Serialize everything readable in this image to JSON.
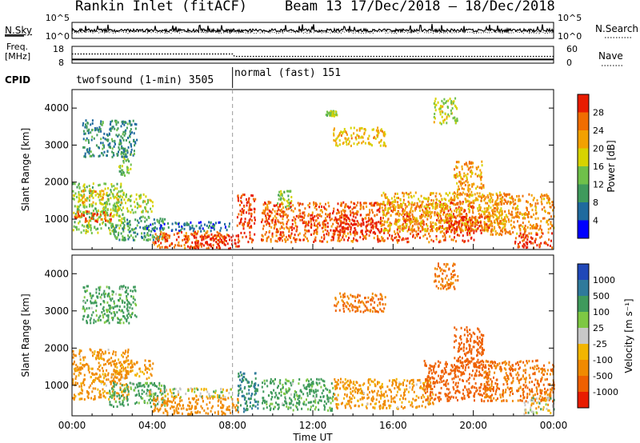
{
  "chart_data": [
    {
      "type": "line",
      "panel": "summary-top",
      "left_label": "N.Sky",
      "right_label": "N.Search",
      "left_ticks": [
        "10^5",
        "10^0"
      ],
      "right_ticks": [
        "10^5",
        "10^0"
      ],
      "legend": [
        {
          "name": "N.Sky",
          "style": "solid"
        },
        {
          "name": "N.Search",
          "style": "dotted"
        }
      ]
    },
    {
      "type": "line",
      "panel": "summary-freq",
      "left_label": [
        "Freq.",
        "[MHz]"
      ],
      "right_label": "Nave",
      "left_ticks": [
        18,
        8
      ],
      "right_ticks": [
        60,
        0
      ],
      "ylim": [
        8,
        18
      ],
      "right_ylim": [
        0,
        60
      ],
      "series": [
        {
          "name": "Freq.",
          "style": "solid",
          "x": [
            0,
            24
          ],
          "values": [
            10.2,
            10.2
          ]
        },
        {
          "name": "Nave",
          "style": "dotted",
          "x": [
            0,
            8,
            8.1,
            24
          ],
          "values": [
            33,
            33,
            24,
            24
          ]
        }
      ]
    },
    {
      "type": "table",
      "panel": "cpid",
      "label": "CPID",
      "segments": [
        {
          "start_hour": 0,
          "end_hour": 8,
          "text": "twofsound (1-min) 3505"
        },
        {
          "start_hour": 8,
          "end_hour": 24,
          "text": "normal (fast) 151"
        }
      ]
    },
    {
      "type": "heatmap",
      "panel": "power",
      "ylabel": "Slant Range [km]",
      "xlim": [
        0,
        24
      ],
      "ylim": [
        180,
        4500
      ],
      "yticks": [
        1000,
        2000,
        3000,
        4000
      ],
      "colorbar": {
        "label": "Power [dB]",
        "ticks": [
          4,
          8,
          12,
          16,
          20,
          24,
          28
        ],
        "range": [
          0,
          30
        ],
        "colors": [
          "#0000ff",
          "#1f6a9e",
          "#3f9a5c",
          "#6fc04a",
          "#d7d300",
          "#f3a100",
          "#f06d00",
          "#e81c00"
        ]
      },
      "echo_regions": [
        {
          "t0": 0.0,
          "t1": 2.6,
          "r0": 650,
          "r1": 2000,
          "value": 14
        },
        {
          "t0": 0.1,
          "t1": 2.0,
          "r0": 950,
          "r1": 1250,
          "value": 26
        },
        {
          "t0": 0.3,
          "t1": 1.6,
          "r0": 1450,
          "r1": 1800,
          "value": 20
        },
        {
          "t0": 2.3,
          "t1": 2.9,
          "r0": 2200,
          "r1": 2900,
          "value": 13
        },
        {
          "t0": 2.0,
          "t1": 4.0,
          "r0": 1200,
          "r1": 1700,
          "value": 16
        },
        {
          "t0": 0.5,
          "t1": 3.2,
          "r0": 2700,
          "r1": 3700,
          "value": 8
        },
        {
          "t0": 1.8,
          "t1": 4.6,
          "r0": 450,
          "r1": 1100,
          "value": 10
        },
        {
          "t0": 3.7,
          "t1": 7.9,
          "r0": 700,
          "r1": 950,
          "value": 6
        },
        {
          "t0": 4.0,
          "t1": 7.7,
          "r0": 250,
          "r1": 700,
          "value": 24
        },
        {
          "t0": 5.5,
          "t1": 8.3,
          "r0": 230,
          "r1": 600,
          "value": 29
        },
        {
          "t0": 8.2,
          "t1": 9.1,
          "r0": 400,
          "r1": 1700,
          "value": 27
        },
        {
          "t0": 10.2,
          "t1": 10.9,
          "r0": 1300,
          "r1": 1800,
          "value": 14
        },
        {
          "t0": 9.4,
          "t1": 20.0,
          "r0": 400,
          "r1": 1500,
          "value": 25
        },
        {
          "t0": 13.0,
          "t1": 15.4,
          "r0": 650,
          "r1": 1150,
          "value": 29
        },
        {
          "t0": 15.4,
          "t1": 21.5,
          "r0": 700,
          "r1": 1750,
          "value": 20
        },
        {
          "t0": 18.6,
          "t1": 20.8,
          "r0": 650,
          "r1": 1100,
          "value": 28
        },
        {
          "t0": 19.0,
          "t1": 20.5,
          "r0": 1500,
          "r1": 2600,
          "value": 21
        },
        {
          "t0": 20.5,
          "t1": 24.0,
          "r0": 600,
          "r1": 1700,
          "value": 22
        },
        {
          "t0": 22.0,
          "t1": 24.0,
          "r0": 250,
          "r1": 650,
          "value": 28
        },
        {
          "t0": 13.0,
          "t1": 15.6,
          "r0": 3000,
          "r1": 3500,
          "value": 19
        },
        {
          "t0": 12.6,
          "t1": 13.2,
          "r0": 3800,
          "r1": 3950,
          "value": 15
        },
        {
          "t0": 18.0,
          "t1": 19.2,
          "r0": 3600,
          "r1": 4300,
          "value": 16
        }
      ]
    },
    {
      "type": "heatmap",
      "panel": "velocity",
      "ylabel": "Slant Range [km]",
      "xlabel": "Time UT",
      "xlim": [
        0,
        24
      ],
      "ylim": [
        180,
        4500
      ],
      "yticks": [
        1000,
        2000,
        3000,
        4000
      ],
      "xticks": [
        "00:00",
        "04:00",
        "08:00",
        "12:00",
        "16:00",
        "20:00",
        "00:00"
      ],
      "colorbar": {
        "label": "Velocity [m s⁻¹]",
        "ticks": [
          1000,
          500,
          100,
          25,
          -25,
          -100,
          -500,
          -1000
        ],
        "colors": [
          "#2048b8",
          "#2f7a9b",
          "#3f9a5c",
          "#7ec844",
          "#c8c8c8",
          "#f2b500",
          "#f08a00",
          "#ee6000",
          "#e81c00"
        ]
      },
      "echo_regions": [
        {
          "t0": 0.0,
          "t1": 2.8,
          "r0": 650,
          "r1": 2000,
          "value": -100
        },
        {
          "t0": 0.5,
          "t1": 3.2,
          "r0": 2700,
          "r1": 3700,
          "value": 100
        },
        {
          "t0": 2.0,
          "t1": 4.0,
          "r0": 1200,
          "r1": 1700,
          "value": -100
        },
        {
          "t0": 1.8,
          "t1": 4.6,
          "r0": 450,
          "r1": 1100,
          "value": 100
        },
        {
          "t0": 3.7,
          "t1": 7.9,
          "r0": 700,
          "r1": 950,
          "value": 0
        },
        {
          "t0": 4.0,
          "t1": 8.3,
          "r0": 230,
          "r1": 700,
          "value": -150
        },
        {
          "t0": 8.2,
          "t1": 9.3,
          "r0": 300,
          "r1": 1400,
          "value": 300
        },
        {
          "t0": 9.4,
          "t1": 13.0,
          "r0": 350,
          "r1": 1200,
          "value": 100
        },
        {
          "t0": 13.0,
          "t1": 18.0,
          "r0": 400,
          "r1": 1200,
          "value": -100
        },
        {
          "t0": 17.5,
          "t1": 21.0,
          "r0": 600,
          "r1": 1700,
          "value": -500
        },
        {
          "t0": 19.0,
          "t1": 20.5,
          "r0": 1500,
          "r1": 2600,
          "value": -500
        },
        {
          "t0": 20.5,
          "t1": 24.0,
          "r0": 600,
          "r1": 1700,
          "value": -300
        },
        {
          "t0": 22.5,
          "t1": 24.0,
          "r0": 250,
          "r1": 700,
          "value": 0
        },
        {
          "t0": 13.0,
          "t1": 15.6,
          "r0": 3000,
          "r1": 3500,
          "value": -300
        },
        {
          "t0": 18.0,
          "t1": 19.2,
          "r0": 3600,
          "r1": 4300,
          "value": -300
        }
      ]
    }
  ],
  "header": {
    "title": "Rankin Inlet (fitACF)",
    "beam_date": "Beam 13  17/Dec/2018 – 18/Dec/2018"
  },
  "labels": {
    "nsky": "N.Sky",
    "nsearch": "N.Search",
    "freq1": "Freq.",
    "freq2": "[MHz]",
    "nave": "Nave",
    "cpid": "CPID",
    "mode1": "twofsound (1-min) 3505",
    "mode2": "normal (fast) 151",
    "ylabel": "Slant Range [km]",
    "xlabel": "Time UT",
    "power_label": "Power [dB]",
    "velocity_label": "Velocity [m s⁻¹]"
  },
  "ticks": {
    "nsky_left": [
      "10^5",
      "10^0"
    ],
    "nsky_right": [
      "10^5",
      "10^0"
    ],
    "freq_left": [
      "18",
      "8"
    ],
    "freq_right": [
      "60",
      "0"
    ],
    "range": [
      "1000",
      "2000",
      "3000",
      "4000"
    ],
    "time": [
      "00:00",
      "04:00",
      "08:00",
      "12:00",
      "16:00",
      "20:00",
      "00:00"
    ],
    "power": [
      "4",
      "8",
      "12",
      "16",
      "20",
      "24",
      "28"
    ],
    "velocity": [
      "1000",
      "500",
      "100",
      "25",
      "-25",
      "-100",
      "-500",
      "-1000"
    ]
  }
}
